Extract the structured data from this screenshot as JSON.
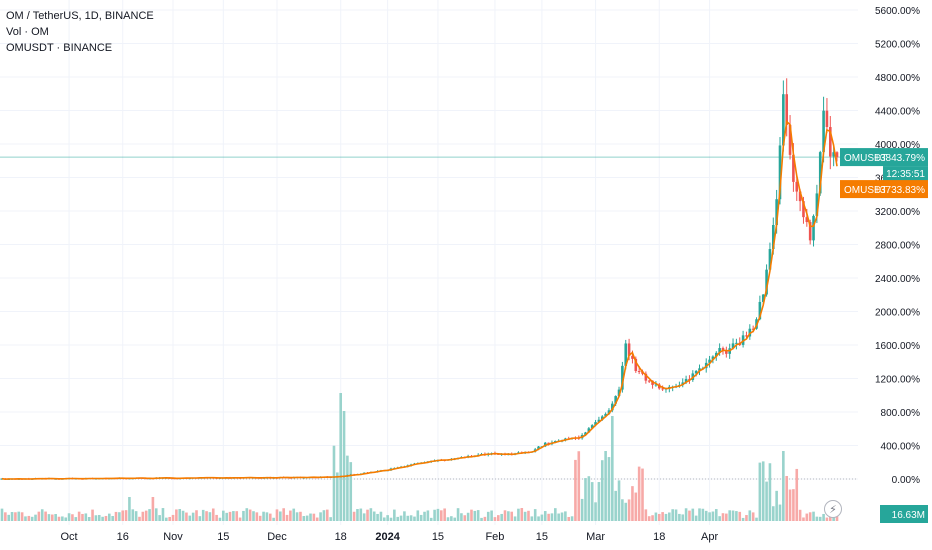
{
  "legend": {
    "title": "OM / TetherUS, 1D, BINANCE",
    "volume": "Vol · OM",
    "compare": "OMUSDT · BINANCE"
  },
  "labels": {
    "main_symbol": "OMUSDT",
    "main_value": "+3843.79%",
    "countdown": "12:35:51",
    "compare_symbol": "OMUSDT",
    "compare_value": "+3733.83%",
    "volume_value": "16.63M"
  },
  "colors": {
    "up": "#26a69a",
    "down": "#ef5350",
    "up_vol": "#99d3cc",
    "down_vol": "#f7a9a7",
    "compare_line": "#f57c00",
    "grid": "#f0f3fa",
    "baseline": "#b2b5be",
    "price_line": "#26a69a"
  },
  "icons": {
    "auto_scale": "lightning-icon"
  },
  "chart_data": {
    "type": "candlestick",
    "y_unit": "percent",
    "ylim": [
      -200,
      5800
    ],
    "y_ticks": [
      "5600.00%",
      "5200.00%",
      "4800.00%",
      "4400.00%",
      "4000.00%",
      "3600.00%",
      "3200.00%",
      "2800.00%",
      "2400.00%",
      "2000.00%",
      "1600.00%",
      "1200.00%",
      "800.00%",
      "400.00%",
      "0.00%"
    ],
    "x_ticks": [
      "Oct",
      "16",
      "Nov",
      "15",
      "Dec",
      "18",
      "2024",
      "15",
      "Feb",
      "15",
      "Mar",
      "18",
      "Apr"
    ],
    "last_value": 3843.79,
    "compare_last_value": 3733.83,
    "volume_last": "16.63M",
    "anchors": [
      [
        0,
        0
      ],
      [
        40,
        10
      ],
      [
        80,
        15
      ],
      [
        100,
        25
      ],
      [
        115,
        110
      ],
      [
        125,
        200
      ],
      [
        135,
        240
      ],
      [
        145,
        300
      ],
      [
        150,
        290
      ],
      [
        157,
        320
      ],
      [
        162,
        420
      ],
      [
        168,
        470
      ],
      [
        172,
        500
      ],
      [
        178,
        700
      ],
      [
        181,
        800
      ],
      [
        184,
        1050
      ],
      [
        186,
        1600
      ],
      [
        188,
        1400
      ],
      [
        190,
        1250
      ],
      [
        194,
        1150
      ],
      [
        198,
        1080
      ],
      [
        202,
        1100
      ],
      [
        206,
        1250
      ],
      [
        210,
        1400
      ],
      [
        213,
        1550
      ],
      [
        216,
        1500
      ],
      [
        220,
        1650
      ],
      [
        224,
        1800
      ],
      [
        227,
        2200
      ],
      [
        229,
        2700
      ],
      [
        231,
        3300
      ],
      [
        233,
        4500
      ],
      [
        235,
        3800
      ],
      [
        237,
        3500
      ],
      [
        239,
        3100
      ],
      [
        241,
        2900
      ],
      [
        243,
        3400
      ],
      [
        245,
        4400
      ],
      [
        247,
        3900
      ],
      [
        249,
        3850
      ]
    ]
  }
}
